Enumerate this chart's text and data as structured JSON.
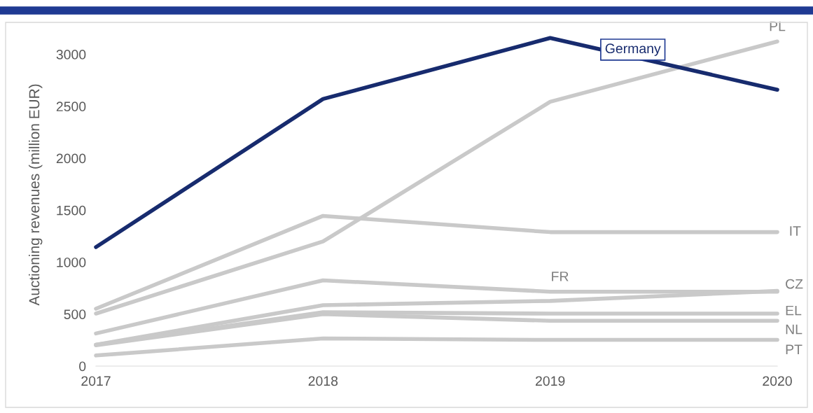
{
  "chart_data": {
    "type": "line",
    "ylabel": "Auctioning revenues (million EUR)",
    "categories": [
      "2017",
      "2018",
      "2019",
      "2020"
    ],
    "series": [
      {
        "name": "PL",
        "color": "#c9c9c9",
        "values": [
          505,
          1200,
          2543,
          3123
        ]
      },
      {
        "name": "IT",
        "color": "#c9c9c9",
        "values": [
          552,
          1445,
          1289,
          1289
        ]
      },
      {
        "name": "FR",
        "color": "#c9c9c9",
        "values": [
          314,
          825,
          716,
          716
        ]
      },
      {
        "name": "CZ",
        "color": "#c9c9c9",
        "values": [
          205,
          586,
          627,
          723
        ]
      },
      {
        "name": "EL",
        "color": "#c9c9c9",
        "values": [
          205,
          518,
          505,
          505
        ]
      },
      {
        "name": "NL",
        "color": "#c9c9c9",
        "values": [
          200,
          500,
          436,
          436
        ]
      },
      {
        "name": "PT",
        "color": "#c9c9c9",
        "values": [
          102,
          266,
          252,
          252
        ]
      },
      {
        "name": "Germany",
        "color": "#172b6e",
        "values": [
          1145,
          2570,
          3157,
          2659
        ]
      }
    ],
    "ylim": [
      0,
      3300
    ],
    "yticks": [
      0,
      500,
      1000,
      1500,
      2000,
      2500,
      3000
    ],
    "grid": false,
    "legend": false,
    "marker": "none",
    "line_style": "solid"
  }
}
